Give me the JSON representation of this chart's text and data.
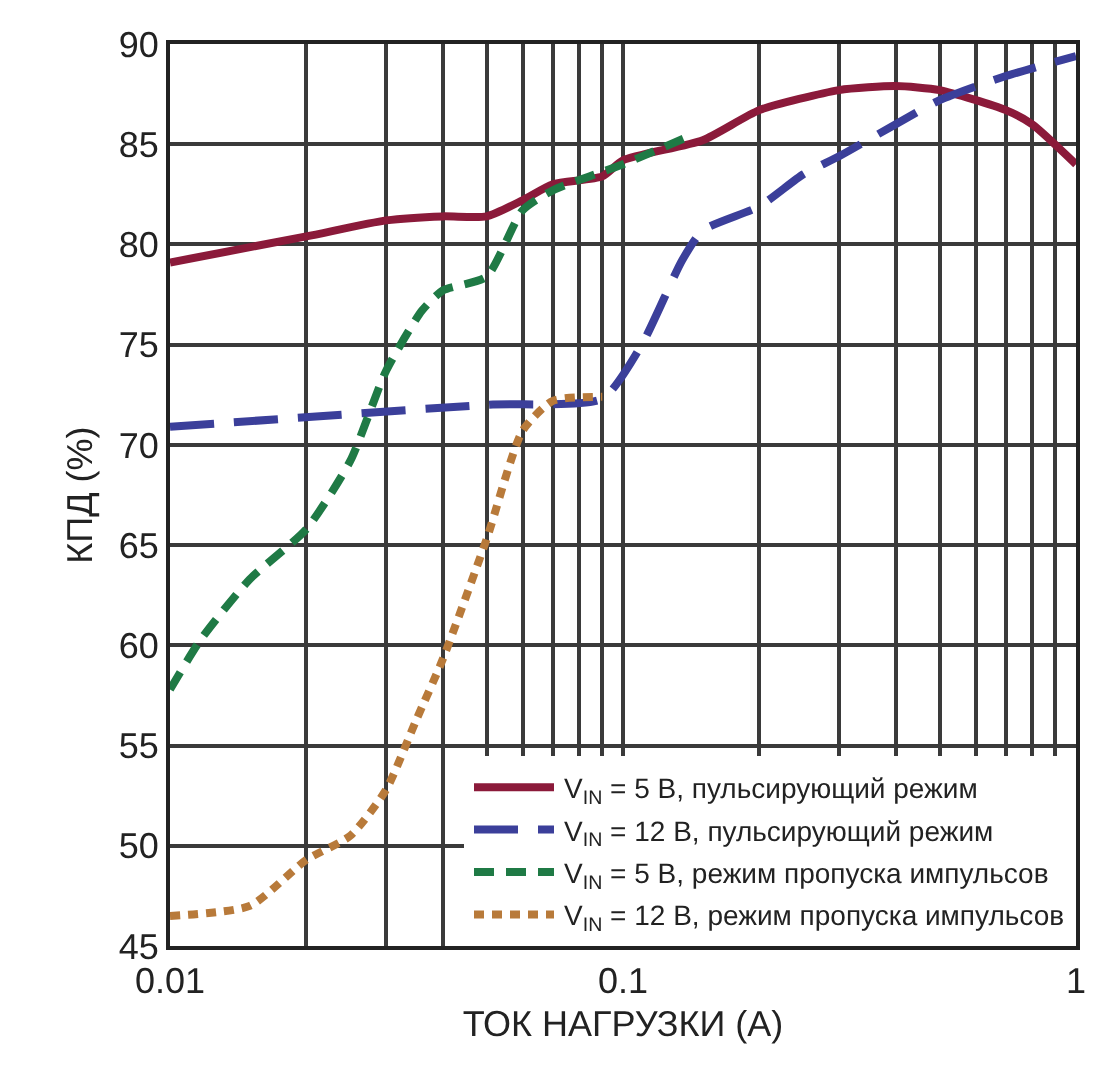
{
  "chart_data": {
    "type": "line",
    "xlabel": "ТОК НАГРУЗКИ (А)",
    "ylabel": "КПД (%)",
    "log": "x",
    "grid": true,
    "legend": "bottom right",
    "xlim": [
      0.01,
      1
    ],
    "ylim": [
      45,
      90
    ],
    "xticks": [
      0.01,
      {
        "value": 0.02,
        "label": null
      },
      {
        "value": 0.03,
        "label": null
      },
      {
        "value": 0.04,
        "label": null
      },
      {
        "value": 0.05,
        "label": null
      },
      {
        "value": 0.06,
        "label": null
      },
      {
        "value": 0.07,
        "label": null
      },
      {
        "value": 0.08,
        "label": null
      },
      {
        "value": 0.09,
        "label": null
      },
      0.1,
      {
        "value": 0.2,
        "label": null
      },
      {
        "value": 0.3,
        "label": null
      },
      {
        "value": 0.4,
        "label": null
      },
      {
        "value": 0.5,
        "label": null
      },
      {
        "value": 0.6,
        "label": null
      },
      {
        "value": 0.7,
        "label": null
      },
      {
        "value": 0.8,
        "label": null
      },
      {
        "value": 0.9,
        "label": null
      },
      1
    ],
    "yticks": [
      45,
      50,
      55,
      60,
      65,
      70,
      75,
      80,
      85,
      90
    ],
    "series": [
      {
        "name": "V$_{IN}$ = 5 В, пульсирующий режим",
        "color": "#8b1a3a",
        "line_style": "solid",
        "x": [
          0.01,
          0.02,
          0.03,
          0.04,
          0.05,
          0.06,
          0.07,
          0.09,
          0.1,
          0.15,
          0.2,
          0.3,
          0.4,
          0.5,
          0.7,
          0.8,
          1
        ],
        "values": [
          79.1,
          80.4,
          81.2,
          81.4,
          81.4,
          82.2,
          83,
          83.4,
          84.2,
          85.2,
          86.7,
          87.7,
          87.9,
          87.7,
          86.7,
          86,
          84
        ]
      },
      {
        "name": "V$_{IN}$ = 12 В, пульсирующий режим",
        "color": "#3b3f9a",
        "line_style": "dashed",
        "x": [
          0.01,
          0.05,
          0.09,
          0.11,
          0.135,
          0.15,
          0.2,
          0.25,
          0.3,
          0.4,
          0.5,
          0.7,
          1
        ],
        "values": [
          70.9,
          72,
          72.3,
          75,
          79.2,
          80.7,
          81.9,
          83.5,
          84.4,
          86,
          87.2,
          88.4,
          89.4
        ]
      },
      {
        "name": "V$_{IN}$ = 5 В, режим пропуска импульсов",
        "color": "#1f7a45",
        "line_style": "dashed",
        "x": [
          0.01,
          0.0117,
          0.015,
          0.02,
          0.025,
          0.03,
          0.036,
          0.04,
          0.05,
          0.06,
          0.07,
          0.1,
          0.14
        ],
        "values": [
          57.8,
          60.3,
          63.3,
          65.8,
          69.2,
          73.7,
          76.7,
          77.7,
          78.4,
          81.7,
          82.7,
          84,
          85.4
        ]
      },
      {
        "name": "V$_{IN}$ = 12 В, режим пропуска импульсов",
        "color": "#b87a3a",
        "line_style": "dotted",
        "x": [
          0.01,
          0.015,
          0.02,
          0.025,
          0.03,
          0.035,
          0.04,
          0.05,
          0.06,
          0.07,
          0.09
        ],
        "values": [
          46.5,
          47,
          49.3,
          50.5,
          52.8,
          56.3,
          59.3,
          65.3,
          70.7,
          72.2,
          72.4
        ]
      }
    ]
  }
}
